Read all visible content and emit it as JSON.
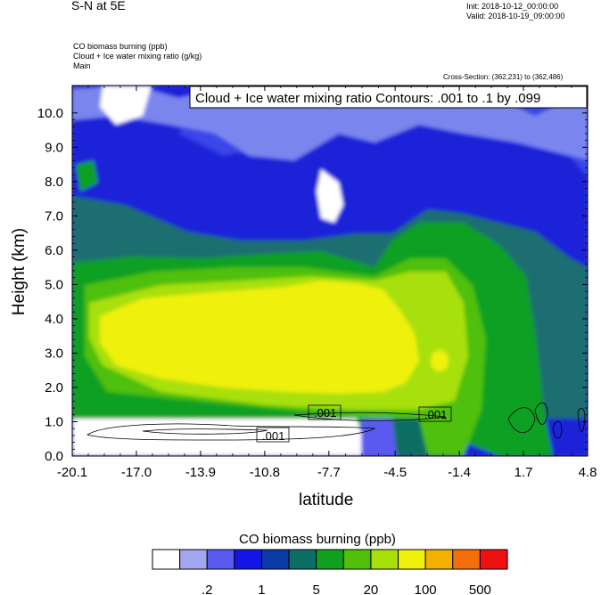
{
  "header": {
    "left_title": "S-N at 5E",
    "init": "Init: 2018-10-12_00:00:00",
    "valid": "Valid: 2018-10-19_09:00:00",
    "field1": "CO biomass burning   (ppb)",
    "field2": "Cloud + Ice water mixing ratio   (g/kg)",
    "field3": "Main",
    "cross_section": "Cross-Section: (362,231) to (362,486)"
  },
  "contour_info": "Cloud + Ice water mixing ratio Contours: .001 to .1 by .099",
  "colorbar": {
    "title": "CO biomass burning  (ppb)",
    "colors": [
      "#ffffff",
      "#a0a6f0",
      "#5a5af0",
      "#1414e6",
      "#0a3aa8",
      "#0a6e64",
      "#10a020",
      "#50c00a",
      "#a8e00a",
      "#f0f00a",
      "#f4b000",
      "#f46e0a",
      "#f01010"
    ],
    "tick_labels": [
      ".2",
      "1",
      "5",
      "20",
      "100",
      "500"
    ]
  },
  "chart_data": {
    "type": "contour",
    "xlabel": "latitude",
    "ylabel": "Height (km)",
    "x_ticks": [
      "-20.1",
      "-17.0",
      "-13.9",
      "-10.8",
      "-7.7",
      "-4.5",
      "-1.4",
      "1.7",
      "4.8"
    ],
    "y_ticks": [
      "0.0",
      "1.0",
      "2.0",
      "3.0",
      "4.0",
      "5.0",
      "6.0",
      "7.0",
      "8.0",
      "9.0",
      "10.0"
    ],
    "xlim": [
      -20.1,
      4.8
    ],
    "ylim": [
      0.0,
      10.8
    ],
    "contour_labels": [
      ".001",
      ".001",
      ".001"
    ],
    "grid": false
  }
}
